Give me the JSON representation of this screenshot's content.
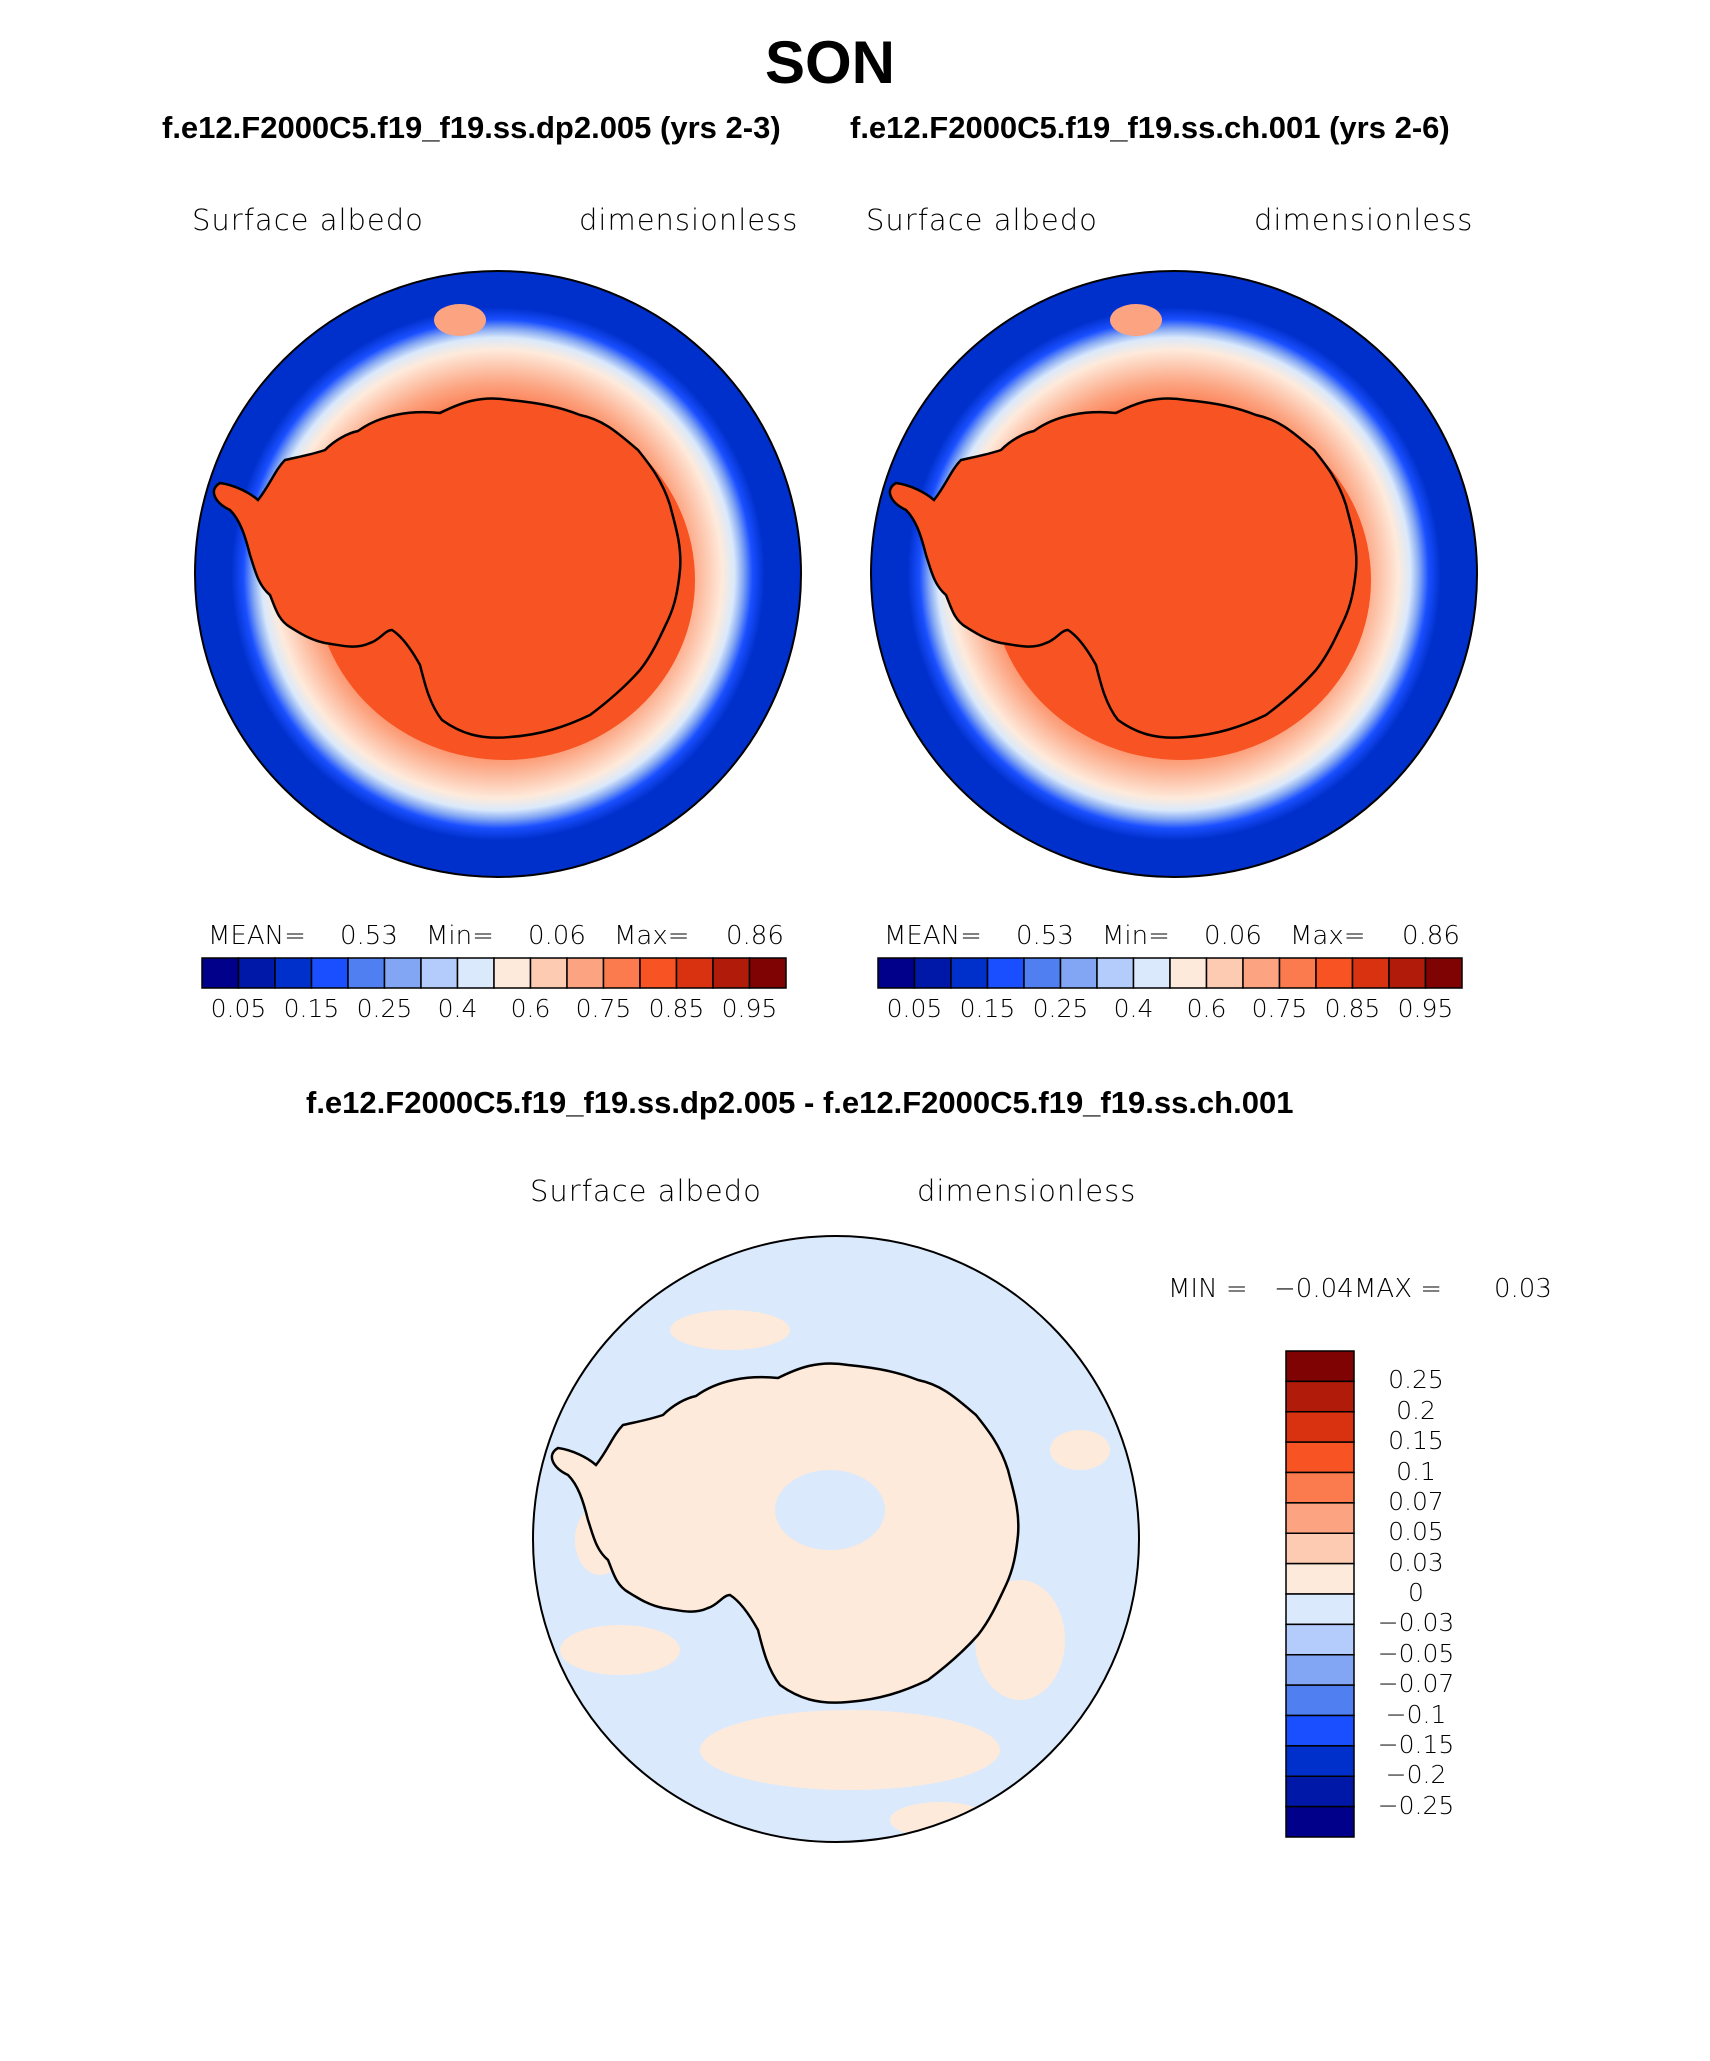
{
  "figure": {
    "title": "SON",
    "subtitle_left": "f.e12.F2000C5.f19_f19.ss.dp2.005 (yrs 2-3)",
    "subtitle_right": "f.e12.F2000C5.f19_f19.ss.ch.001 (yrs 2-6)",
    "diff_title": "f.e12.F2000C5.f19_f19.ss.dp2.005 - f.e12.F2000C5.f19_f19.ss.ch.001"
  },
  "panels": {
    "left": {
      "variable": "Surface albedo",
      "units": "dimensionless",
      "mean_label": "MEAN=",
      "mean_value": "0.53",
      "min_label": "Min=",
      "min_value": "0.06",
      "max_label": "Max=",
      "max_value": "0.86"
    },
    "right": {
      "variable": "Surface albedo",
      "units": "dimensionless",
      "mean_label": "MEAN=",
      "mean_value": "0.53",
      "min_label": "Min=",
      "min_value": "0.06",
      "max_label": "Max=",
      "max_value": "0.86"
    },
    "diff": {
      "variable": "Surface albedo",
      "units": "dimensionless",
      "min_label": "MIN =",
      "min_value": "−0.04",
      "max_label": "MAX =",
      "max_value": "0.03"
    }
  },
  "chart_data": [
    {
      "type": "heatmap",
      "projection": "south-polar-stereographic",
      "title": "f.e12.F2000C5.f19_f19.ss.dp2.005 (yrs 2-3)",
      "variable": "Surface albedo",
      "units": "dimensionless",
      "stats": {
        "mean": 0.53,
        "min": 0.06,
        "max": 0.86
      },
      "colorbar_ticks": [
        "0.05",
        "0.15",
        "0.25",
        "0.4",
        "0.6",
        "0.75",
        "0.85",
        "0.95"
      ],
      "colorbar_colors": [
        "#00008a",
        "#0018a8",
        "#0030cc",
        "#1a4fff",
        "#4f7ff0",
        "#82a6f3",
        "#b3ccfb",
        "#dae9fb",
        "#feeadb",
        "#fdcab2",
        "#fca481",
        "#fb7a4e",
        "#f75323",
        "#d83211",
        "#b01c09",
        "#800303"
      ]
    },
    {
      "type": "heatmap",
      "projection": "south-polar-stereographic",
      "title": "f.e12.F2000C5.f19_f19.ss.ch.001 (yrs 2-6)",
      "variable": "Surface albedo",
      "units": "dimensionless",
      "stats": {
        "mean": 0.53,
        "min": 0.06,
        "max": 0.86
      },
      "colorbar_ticks": [
        "0.05",
        "0.15",
        "0.25",
        "0.4",
        "0.6",
        "0.75",
        "0.85",
        "0.95"
      ],
      "colorbar_colors": [
        "#00008a",
        "#0018a8",
        "#0030cc",
        "#1a4fff",
        "#4f7ff0",
        "#82a6f3",
        "#b3ccfb",
        "#dae9fb",
        "#feeadb",
        "#fdcab2",
        "#fca481",
        "#fb7a4e",
        "#f75323",
        "#d83211",
        "#b01c09",
        "#800303"
      ]
    },
    {
      "type": "heatmap",
      "projection": "south-polar-stereographic",
      "title": "f.e12.F2000C5.f19_f19.ss.dp2.005 - f.e12.F2000C5.f19_f19.ss.ch.001",
      "variable": "Surface albedo",
      "units": "dimensionless",
      "stats": {
        "min": -0.04,
        "max": 0.03
      },
      "colorbar_ticks": [
        "0.25",
        "0.2",
        "0.15",
        "0.1",
        "0.07",
        "0.05",
        "0.03",
        "0",
        "−0.03",
        "−0.05",
        "−0.07",
        "−0.1",
        "−0.15",
        "−0.2",
        "−0.25"
      ],
      "colorbar_colors_top_to_bottom": [
        "#800303",
        "#b01c09",
        "#d83211",
        "#f75323",
        "#fb7a4e",
        "#fca481",
        "#fdcab2",
        "#feeadb",
        "#dae9fb",
        "#b3ccfb",
        "#82a6f3",
        "#4f7ff0",
        "#1a4fff",
        "#0030cc",
        "#0018a8",
        "#00008a"
      ]
    }
  ]
}
